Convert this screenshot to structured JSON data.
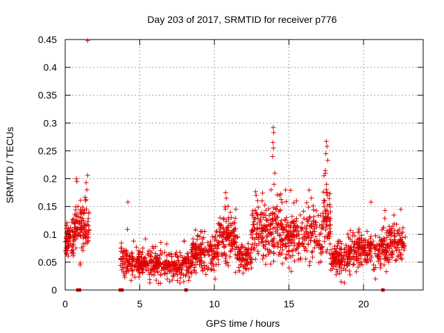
{
  "chart_data": {
    "type": "scatter",
    "title": "Day 203 of 2017, SRMTID for receiver p776",
    "xlabel": "GPS time / hours",
    "ylabel": "SRMTID / TECUs",
    "xlim": [
      0,
      24
    ],
    "ylim": [
      0,
      0.45
    ],
    "grid": true,
    "xticks": [
      0,
      5,
      10,
      15,
      20
    ],
    "xtick_labels": [
      "0",
      "5",
      "10",
      "15",
      "20"
    ],
    "yticks": [
      0,
      0.05,
      0.1,
      0.15,
      0.2,
      0.25,
      0.3,
      0.35,
      0.4,
      0.45
    ],
    "ytick_labels": [
      "0",
      "0.05",
      "0.1",
      "0.15",
      "0.2",
      "0.25",
      "0.3",
      "0.35",
      "0.4",
      "0.45"
    ],
    "marker": "+",
    "color": "#e00000",
    "segments": [
      {
        "x0": 0.0,
        "x1": 0.6,
        "base": 0.09,
        "spread": 0.025,
        "n": 70
      },
      {
        "x0": 0.6,
        "x1": 1.6,
        "base": 0.12,
        "spread": 0.04,
        "n": 110
      },
      {
        "x0": 3.7,
        "x1": 5.0,
        "base": 0.05,
        "spread": 0.025,
        "n": 110
      },
      {
        "x0": 5.0,
        "x1": 8.5,
        "base": 0.045,
        "spread": 0.022,
        "n": 300
      },
      {
        "x0": 8.5,
        "x1": 10.3,
        "base": 0.065,
        "spread": 0.028,
        "n": 170
      },
      {
        "x0": 10.3,
        "x1": 11.5,
        "base": 0.09,
        "spread": 0.04,
        "n": 120
      },
      {
        "x0": 11.5,
        "x1": 12.5,
        "base": 0.06,
        "spread": 0.025,
        "n": 90
      },
      {
        "x0": 12.5,
        "x1": 14.5,
        "base": 0.105,
        "spread": 0.045,
        "n": 190
      },
      {
        "x0": 14.5,
        "x1": 17.3,
        "base": 0.095,
        "spread": 0.04,
        "n": 230
      },
      {
        "x0": 17.3,
        "x1": 17.8,
        "base": 0.12,
        "spread": 0.05,
        "n": 60
      },
      {
        "x0": 17.8,
        "x1": 19.0,
        "base": 0.055,
        "spread": 0.025,
        "n": 120
      },
      {
        "x0": 19.0,
        "x1": 21.2,
        "base": 0.07,
        "spread": 0.03,
        "n": 190
      },
      {
        "x0": 21.2,
        "x1": 22.8,
        "base": 0.08,
        "spread": 0.03,
        "n": 140
      }
    ],
    "outliers": [
      {
        "x": 1.5,
        "y": 0.448
      },
      {
        "x": 0.75,
        "y": 0.2
      },
      {
        "x": 0.78,
        "y": 0.195
      },
      {
        "x": 1.5,
        "y": 0.206
      },
      {
        "x": 1.45,
        "y": 0.18
      },
      {
        "x": 13.95,
        "y": 0.292
      },
      {
        "x": 13.98,
        "y": 0.283
      },
      {
        "x": 13.92,
        "y": 0.265
      },
      {
        "x": 13.96,
        "y": 0.255
      },
      {
        "x": 13.9,
        "y": 0.24
      },
      {
        "x": 14.05,
        "y": 0.21
      },
      {
        "x": 14.0,
        "y": 0.19
      },
      {
        "x": 13.8,
        "y": 0.18
      },
      {
        "x": 17.5,
        "y": 0.267
      },
      {
        "x": 17.55,
        "y": 0.258
      },
      {
        "x": 17.48,
        "y": 0.245
      },
      {
        "x": 17.6,
        "y": 0.233
      },
      {
        "x": 17.45,
        "y": 0.21
      },
      {
        "x": 17.52,
        "y": 0.19
      },
      {
        "x": 17.58,
        "y": 0.175
      },
      {
        "x": 4.2,
        "y": 0.158
      },
      {
        "x": 10.75,
        "y": 0.175
      },
      {
        "x": 10.8,
        "y": 0.165
      },
      {
        "x": 12.8,
        "y": 0.17
      },
      {
        "x": 13.2,
        "y": 0.16
      },
      {
        "x": 22.5,
        "y": 0.145
      },
      {
        "x": 20.5,
        "y": 0.158
      },
      {
        "x": 16.5,
        "y": 0.165
      },
      {
        "x": 15.5,
        "y": 0.16
      },
      {
        "x": 1.0,
        "y": 0.045
      },
      {
        "x": 10.05,
        "y": 0.02
      },
      {
        "x": 18.5,
        "y": 0.015
      },
      {
        "x": 7.0,
        "y": 0.015
      }
    ],
    "zero_markers": [
      0.85,
      0.95,
      3.7,
      3.8,
      8.1,
      21.3
    ]
  }
}
